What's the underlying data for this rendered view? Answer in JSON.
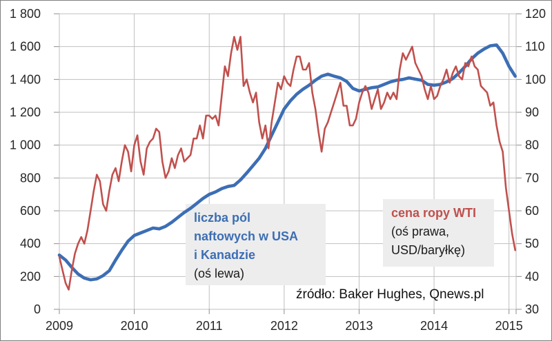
{
  "chart_data": {
    "type": "line",
    "source_note": "źródło: Baker Hughes, Qnews.pl",
    "grid": true,
    "legend_position": "in-plot text boxes",
    "x_axis": {
      "range": [
        2009,
        2015.095
      ],
      "tick_values": [
        2009,
        2010,
        2011,
        2012,
        2013,
        2014,
        2015
      ],
      "tick_labels": [
        "2009",
        "2010",
        "2011",
        "2012",
        "2013",
        "2014",
        "2015"
      ]
    },
    "y_axis_left": {
      "range": [
        0,
        1800
      ],
      "tick_values": [
        0,
        200,
        400,
        600,
        800,
        1000,
        1200,
        1400,
        1600,
        1800
      ],
      "tick_labels": [
        "0",
        "200",
        "400",
        "600",
        "800",
        "1 000",
        "1 200",
        "1 400",
        "1 600",
        "1 800"
      ]
    },
    "y_axis_right": {
      "range": [
        30,
        120
      ],
      "tick_values": [
        30,
        40,
        50,
        60,
        70,
        80,
        90,
        100,
        110,
        120
      ],
      "tick_labels": [
        "30",
        "40",
        "50",
        "60",
        "70",
        "80",
        "90",
        "100",
        "110",
        "120"
      ]
    },
    "series": [
      {
        "name": "liczba pól naftowych w USA i Kanadzie",
        "axis": "left",
        "color": "#3c6eb4",
        "stroke_width": 4.6,
        "x_start": 2009.0,
        "x_step": 0.0833333,
        "values": [
          330,
          300,
          255,
          215,
          190,
          180,
          185,
          205,
          235,
          300,
          360,
          415,
          450,
          465,
          480,
          495,
          490,
          505,
          530,
          560,
          590,
          615,
          645,
          675,
          700,
          715,
          735,
          748,
          755,
          788,
          830,
          875,
          920,
          980,
          1060,
          1140,
          1220,
          1270,
          1310,
          1340,
          1365,
          1395,
          1420,
          1432,
          1420,
          1410,
          1388,
          1345,
          1330,
          1340,
          1350,
          1355,
          1370,
          1385,
          1395,
          1400,
          1410,
          1402,
          1395,
          1370,
          1365,
          1370,
          1385,
          1405,
          1440,
          1480,
          1525,
          1560,
          1585,
          1605,
          1610,
          1560,
          1480,
          1420
        ]
      },
      {
        "name": "cena ropy WTI",
        "axis": "right",
        "color": "#c0504d",
        "stroke_width": 2.6,
        "x_start": 2009.0,
        "x_step": 0.0416667,
        "values": [
          46,
          42,
          38,
          36,
          42,
          47,
          50,
          52,
          50,
          54,
          60,
          66,
          71,
          69,
          62,
          60,
          66,
          71,
          73,
          69,
          75,
          80,
          78,
          72,
          80,
          83,
          75,
          71,
          79,
          81,
          82,
          85,
          84,
          75,
          70,
          72,
          76,
          73,
          77,
          79,
          75,
          76,
          77,
          82,
          82,
          86,
          82,
          89,
          89,
          88,
          89,
          86,
          95,
          104,
          101,
          108,
          113,
          109,
          113,
          98,
          100,
          96,
          93,
          96,
          87,
          82,
          86,
          79,
          87,
          93,
          99,
          97,
          101,
          99,
          98,
          103,
          107,
          107,
          103,
          103,
          105,
          96,
          91,
          84,
          78,
          85,
          87,
          90,
          93,
          96,
          99,
          92,
          92,
          86,
          86,
          88,
          93,
          96,
          98,
          96,
          91,
          94,
          97,
          91,
          93,
          96,
          94,
          96,
          94,
          103,
          108,
          106,
          108,
          110,
          105,
          103,
          101,
          97,
          94,
          98,
          94,
          95,
          98,
          100,
          103,
          99,
          102,
          104,
          101,
          100,
          105,
          104,
          107,
          104,
          103,
          98,
          97,
          96,
          92,
          93,
          86,
          81,
          78,
          67,
          60,
          53,
          48
        ]
      }
    ],
    "annotations": {
      "left": {
        "lines": [
          "liczba pól",
          "naftowych w USA",
          "i Kanadzie"
        ],
        "note": "(oś lewa)"
      },
      "right": {
        "title": "cena ropy WTI",
        "note_lines": [
          "(oś prawa,",
          "USD/baryłkę)"
        ]
      }
    }
  }
}
